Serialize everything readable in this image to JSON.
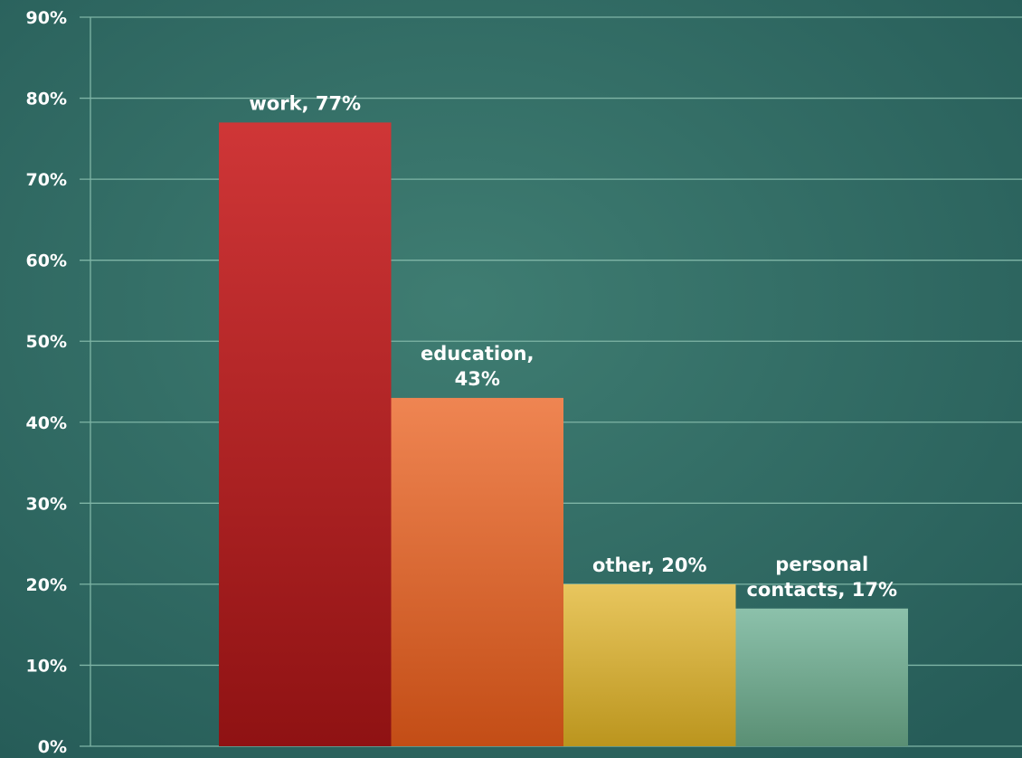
{
  "chart_data": {
    "type": "bar",
    "categories": [
      "work",
      "education",
      "other",
      "personal contacts"
    ],
    "values": [
      77,
      43,
      20,
      17
    ],
    "value_unit": "%",
    "data_labels": [
      [
        "work, 77%"
      ],
      [
        "education,",
        "43%"
      ],
      [
        "other, 20%"
      ],
      [
        "personal",
        "contacts, 17%"
      ]
    ],
    "ylim": [
      0,
      90
    ],
    "y_ticks": [
      0,
      10,
      20,
      30,
      40,
      50,
      60,
      70,
      80,
      90
    ],
    "y_tick_labels": [
      "0%",
      "10%",
      "20%",
      "30%",
      "40%",
      "50%",
      "60%",
      "70%",
      "80%",
      "90%"
    ],
    "grid": true,
    "legend": "none",
    "colors": {
      "background_center": "#3f7d72",
      "background_edge": "#265c58",
      "gridline": "#7fb5a6",
      "bars": [
        {
          "top": "#cf3637",
          "bottom": "#8f1213"
        },
        {
          "top": "#ef8552",
          "bottom": "#c34d16"
        },
        {
          "top": "#e8c65e",
          "bottom": "#bb951e"
        },
        {
          "top": "#8cc1ab",
          "bottom": "#5a8f74"
        }
      ]
    }
  }
}
